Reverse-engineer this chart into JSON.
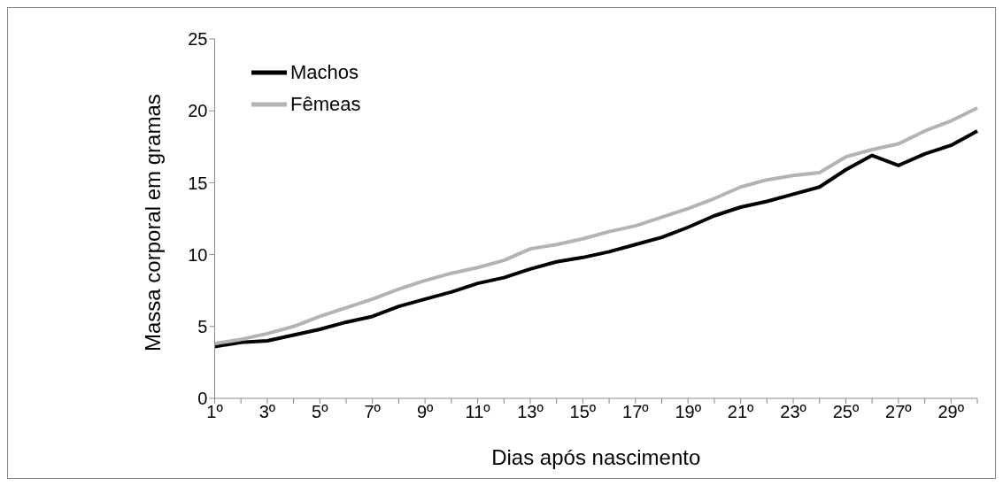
{
  "chart_data": {
    "type": "line",
    "xlabel": "Dias após nascimento",
    "ylabel": "Massa corporal em gramas",
    "categories": [
      "1º",
      null,
      "3º",
      null,
      "5º",
      null,
      "7º",
      null,
      "9º",
      null,
      "11º",
      null,
      "13º",
      null,
      "15º",
      null,
      "17º",
      null,
      "19º",
      null,
      "21º",
      null,
      "23º",
      null,
      "25º",
      null,
      "27º",
      null,
      "29º",
      null
    ],
    "series": [
      {
        "name": "Machos",
        "color": "#000000",
        "values": [
          3.6,
          3.9,
          4.0,
          4.4,
          4.8,
          5.3,
          5.7,
          6.4,
          6.9,
          7.4,
          8.0,
          8.4,
          9.0,
          9.5,
          9.8,
          10.2,
          10.7,
          11.2,
          11.9,
          12.7,
          13.3,
          13.7,
          14.2,
          14.7,
          15.9,
          16.9,
          16.2,
          17.0,
          17.6,
          18.6
        ]
      },
      {
        "name": "Fêmeas",
        "color": "#b3b3b3",
        "values": [
          3.8,
          4.1,
          4.5,
          5.0,
          5.7,
          6.3,
          6.9,
          7.6,
          8.2,
          8.7,
          9.1,
          9.6,
          10.4,
          10.7,
          11.1,
          11.6,
          12.0,
          12.6,
          13.2,
          13.9,
          14.7,
          15.2,
          15.5,
          15.7,
          16.8,
          17.3,
          17.7,
          18.6,
          19.3,
          20.2
        ]
      }
    ],
    "ylim": [
      0,
      25
    ],
    "yticks": [
      0,
      5,
      10,
      15,
      20,
      25
    ],
    "grid": false,
    "legend": "top left",
    "marker": "none",
    "line_style": "solid"
  }
}
